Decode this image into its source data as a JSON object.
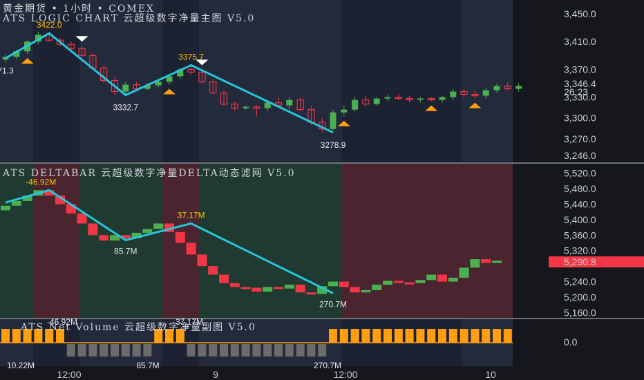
{
  "header": {
    "main_title": "黄金期货  •  1小时  •  COMEX",
    "main_subtitle": "ATS LOGIC CHART 云超级数字净量主图 V5.0",
    "delta_title": "ATS DELTABAR 云超级数字净量DELTA动态滤网 V5.0",
    "vol_title": "ATS Net Volume 云超级数字净量副图 V5.0"
  },
  "colors": {
    "bull": "#4caf50",
    "bear": "#f23645",
    "zigzag": "#26c6da",
    "label_yellow": "#ffc107",
    "label_white": "#e6e6e6",
    "bg_blue": "#252c3d",
    "bg_green": "#1f3a30",
    "bg_red": "#4a2530",
    "vol_bar": "#ff9f0f",
    "vol_bar_gray": "#6b6b6b"
  },
  "chart_data": [
    {
      "type": "candlestick",
      "name": "main",
      "ylim": [
        3240,
        3460
      ],
      "y_ticks": [
        "3,450.0",
        "3,410.0",
        "3,370.0",
        "3,330.0",
        "3,300.0",
        "3,270.0",
        "3,246.0"
      ],
      "y_tick_values": [
        3450,
        3410,
        3370,
        3330,
        3300,
        3270,
        3246
      ],
      "last_price": "3,346.4",
      "countdown": "26:23",
      "candles": [
        [
          3384,
          3392,
          3380,
          3388
        ],
        [
          3388,
          3398,
          3385,
          3396
        ],
        [
          3396,
          3412,
          3392,
          3410
        ],
        [
          3410,
          3424,
          3406,
          3420
        ],
        [
          3420,
          3422,
          3410,
          3412
        ],
        [
          3412,
          3415,
          3404,
          3406
        ],
        [
          3406,
          3410,
          3398,
          3400
        ],
        [
          3400,
          3404,
          3388,
          3390
        ],
        [
          3390,
          3394,
          3370,
          3372
        ],
        [
          3372,
          3376,
          3350,
          3354
        ],
        [
          3354,
          3360,
          3333,
          3338
        ],
        [
          3338,
          3352,
          3335,
          3348
        ],
        [
          3348,
          3352,
          3338,
          3342
        ],
        [
          3342,
          3350,
          3340,
          3347
        ],
        [
          3347,
          3356,
          3344,
          3352
        ],
        [
          3352,
          3362,
          3348,
          3360
        ],
        [
          3360,
          3372,
          3356,
          3370
        ],
        [
          3370,
          3376,
          3362,
          3366
        ],
        [
          3366,
          3370,
          3350,
          3352
        ],
        [
          3352,
          3356,
          3334,
          3336
        ],
        [
          3336,
          3340,
          3318,
          3320
        ],
        [
          3320,
          3324,
          3310,
          3314
        ],
        [
          3314,
          3318,
          3312,
          3316
        ],
        [
          3316,
          3318,
          3302,
          3314
        ],
        [
          3314,
          3326,
          3310,
          3322
        ],
        [
          3322,
          3330,
          3316,
          3318
        ],
        [
          3318,
          3330,
          3312,
          3326
        ],
        [
          3326,
          3330,
          3310,
          3312
        ],
        [
          3312,
          3318,
          3290,
          3294
        ],
        [
          3294,
          3300,
          3279,
          3284
        ],
        [
          3284,
          3312,
          3282,
          3308
        ],
        [
          3308,
          3318,
          3302,
          3312
        ],
        [
          3312,
          3330,
          3308,
          3326
        ],
        [
          3326,
          3332,
          3316,
          3320
        ],
        [
          3320,
          3330,
          3318,
          3328
        ],
        [
          3328,
          3334,
          3324,
          3330
        ],
        [
          3330,
          3334,
          3326,
          3328
        ],
        [
          3328,
          3332,
          3322,
          3326
        ],
        [
          3326,
          3330,
          3322,
          3328
        ],
        [
          3328,
          3330,
          3324,
          3326
        ],
        [
          3326,
          3332,
          3322,
          3330
        ],
        [
          3330,
          3342,
          3326,
          3338
        ],
        [
          3338,
          3342,
          3330,
          3334
        ],
        [
          3334,
          3340,
          3328,
          3332
        ],
        [
          3332,
          3344,
          3328,
          3340
        ],
        [
          3340,
          3350,
          3336,
          3346
        ],
        [
          3346,
          3352,
          3340,
          3342
        ],
        [
          3342,
          3350,
          3338,
          3346
        ]
      ],
      "zigzag_points": [
        [
          0,
          3386
        ],
        [
          4,
          3422
        ],
        [
          11,
          3333
        ],
        [
          17,
          3376
        ],
        [
          30,
          3279
        ]
      ],
      "labels": [
        {
          "i": 0,
          "text": "71.3",
          "pos": "below",
          "color": "label_white"
        },
        {
          "i": 4,
          "text": "3422.0",
          "pos": "above",
          "color": "label_yellow"
        },
        {
          "i": 11,
          "text": "3332.7",
          "pos": "below",
          "color": "label_white"
        },
        {
          "i": 17,
          "text": "3375.7",
          "pos": "above",
          "color": "label_yellow"
        },
        {
          "i": 30,
          "text": "3278.9",
          "pos": "below",
          "color": "label_white"
        }
      ],
      "buy_markers": [
        2,
        15,
        31,
        39,
        43
      ],
      "sell_markers": [
        7,
        18
      ]
    },
    {
      "type": "bar",
      "name": "delta",
      "ylim": [
        5150,
        5530
      ],
      "y_ticks": [
        "5,520.0",
        "5,480.0",
        "5,440.0",
        "5,400.0",
        "5,360.0",
        "5,320.0",
        "5,240.0",
        "5,200.0",
        "5,160.0"
      ],
      "y_tick_values": [
        5520,
        5480,
        5440,
        5400,
        5360,
        5320,
        5240,
        5200,
        5160
      ],
      "last_value": "5,290.8",
      "bars": [
        [
          5424,
          5436
        ],
        [
          5436,
          5448
        ],
        [
          5448,
          5462
        ],
        [
          5462,
          5476
        ],
        [
          5476,
          5462
        ],
        [
          5462,
          5440
        ],
        [
          5440,
          5416
        ],
        [
          5416,
          5390
        ],
        [
          5390,
          5360
        ],
        [
          5360,
          5346
        ],
        [
          5346,
          5360
        ],
        [
          5360,
          5352
        ],
        [
          5352,
          5366
        ],
        [
          5366,
          5376
        ],
        [
          5376,
          5390
        ],
        [
          5390,
          5368
        ],
        [
          5368,
          5340
        ],
        [
          5340,
          5310
        ],
        [
          5310,
          5280
        ],
        [
          5280,
          5258
        ],
        [
          5258,
          5236
        ],
        [
          5236,
          5226
        ],
        [
          5226,
          5224
        ],
        [
          5224,
          5214
        ],
        [
          5214,
          5226
        ],
        [
          5226,
          5222
        ],
        [
          5222,
          5232
        ],
        [
          5232,
          5212
        ],
        [
          5212,
          5208
        ],
        [
          5208,
          5228
        ],
        [
          5228,
          5240
        ],
        [
          5240,
          5226
        ],
        [
          5226,
          5212
        ],
        [
          5212,
          5218
        ],
        [
          5218,
          5232
        ],
        [
          5232,
          5242
        ],
        [
          5242,
          5238
        ],
        [
          5238,
          5236
        ],
        [
          5236,
          5244
        ],
        [
          5244,
          5258
        ],
        [
          5258,
          5240
        ],
        [
          5240,
          5250
        ],
        [
          5250,
          5276
        ],
        [
          5276,
          5298
        ],
        [
          5298,
          5288
        ],
        [
          5288,
          5294
        ]
      ],
      "zigzag_points": [
        [
          0,
          5444
        ],
        [
          4,
          5476
        ],
        [
          11,
          5347
        ],
        [
          17,
          5390
        ],
        [
          30,
          5210
        ]
      ],
      "labels": [
        {
          "i": 4,
          "text": "-46.92M",
          "pos": "above",
          "color": "label_yellow"
        },
        {
          "i": 11,
          "text": "85.7M",
          "pos": "below",
          "color": "label_white"
        },
        {
          "i": 17,
          "text": "37.17M",
          "pos": "above",
          "color": "label_yellow"
        },
        {
          "i": 30,
          "text": "270.7M",
          "pos": "below",
          "color": "label_white"
        }
      ]
    },
    {
      "type": "bar",
      "name": "net_volume",
      "y_ticks": [
        "0.0"
      ],
      "bars_sign": [
        1,
        1,
        1,
        1,
        1,
        1,
        -1,
        -1,
        -1,
        -1,
        -1,
        -1,
        -1,
        -1,
        1,
        1,
        1,
        -1,
        -1,
        -1,
        -1,
        -1,
        -1,
        -1,
        -1,
        -1,
        -1,
        -1,
        -1,
        -1,
        1,
        1,
        1,
        1,
        1,
        1,
        1,
        1,
        1,
        1,
        1,
        1,
        1,
        1,
        1,
        1,
        1
      ],
      "labels": [
        {
          "text": "-46.92M",
          "pos": "top"
        },
        {
          "text": "37.17M",
          "pos": "top"
        },
        {
          "text": "10.22M",
          "pos": "bottom"
        },
        {
          "text": "85.7M",
          "pos": "bottom"
        },
        {
          "text": "270.7M",
          "pos": "bottom"
        }
      ]
    }
  ],
  "x_axis_labels": [
    "12:00",
    "9",
    "12:00",
    "10"
  ]
}
